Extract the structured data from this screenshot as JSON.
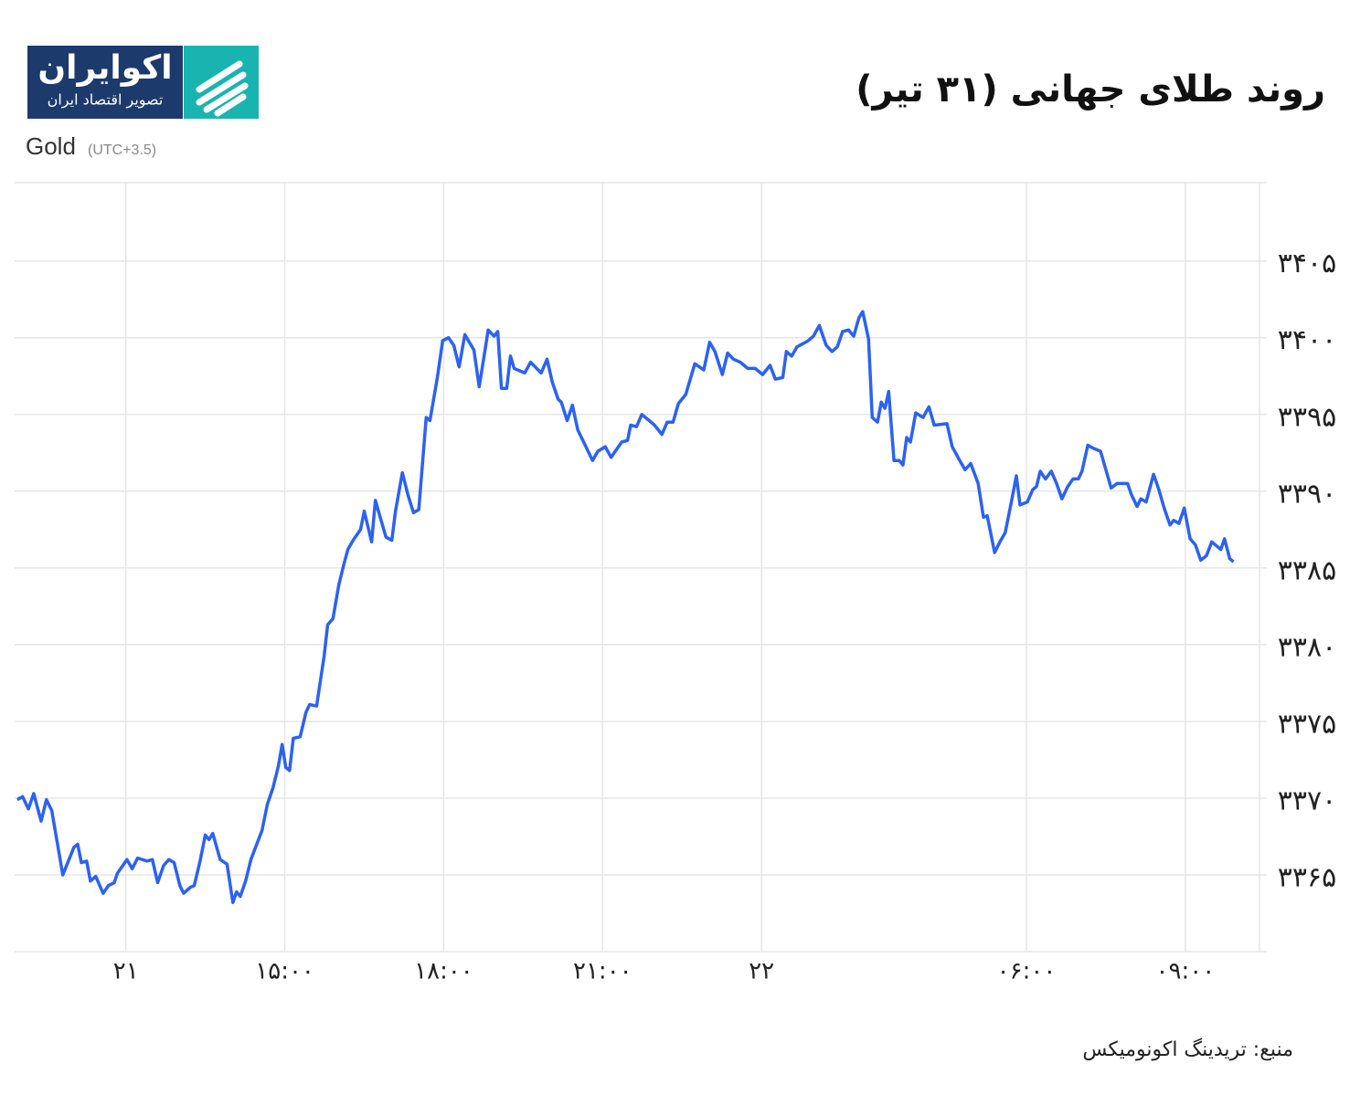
{
  "logo": {
    "name": "اکوایران",
    "tagline": "تصویر اقتصاد ایران"
  },
  "chart_data": {
    "type": "line",
    "title": "روند طلای جهانی (۳۱ تیر)",
    "label": "Gold",
    "label_note": "(UTC+3.5)",
    "source": "منبع: تریدینگ اکونومیکس",
    "xlim": [
      -2.1,
      21.4
    ],
    "xticks": [
      {
        "value": 0,
        "label": "۲۱"
      },
      {
        "value": 3,
        "label": "۱۵:۰۰"
      },
      {
        "value": 6,
        "label": "۱۸:۰۰"
      },
      {
        "value": 9,
        "label": "۲۱:۰۰"
      },
      {
        "value": 12,
        "label": "۲۲"
      },
      {
        "value": 17,
        "label": "۰۶:۰۰"
      },
      {
        "value": 20,
        "label": "۰۹:۰۰"
      }
    ],
    "ylim": [
      3360,
      3410.1
    ],
    "yticks": [
      {
        "value": 3365,
        "label": "۳۳۶۵"
      },
      {
        "value": 3370,
        "label": "۳۳۷۰"
      },
      {
        "value": 3375,
        "label": "۳۳۷۵"
      },
      {
        "value": 3380,
        "label": "۳۳۸۰"
      },
      {
        "value": 3385,
        "label": "۳۳۸۵"
      },
      {
        "value": 3390,
        "label": "۳۳۹۰"
      },
      {
        "value": 3395,
        "label": "۳۳۹۵"
      },
      {
        "value": 3400,
        "label": "۳۴۰۰"
      },
      {
        "value": 3405,
        "label": "۳۴۰۵"
      }
    ],
    "grid": true,
    "color": "#2c62f2",
    "x": [
      -2.05,
      -1.95,
      -1.84,
      -1.74,
      -1.6,
      -1.5,
      -1.4,
      -1.19,
      -0.98,
      -0.91,
      -0.84,
      -0.74,
      -0.67,
      -0.57,
      -0.43,
      -0.33,
      -0.22,
      -0.16,
      0.02,
      0.12,
      0.22,
      0.4,
      0.5,
      0.6,
      0.71,
      0.81,
      0.91,
      1.02,
      1.09,
      1.22,
      1.29,
      1.4,
      1.5,
      1.57,
      1.64,
      1.78,
      1.91,
      2.02,
      2.09,
      2.16,
      2.26,
      2.36,
      2.47,
      2.57,
      2.67,
      2.78,
      2.88,
      2.95,
      3.02,
      3.09,
      3.16,
      3.29,
      3.4,
      3.47,
      3.6,
      3.74,
      3.81,
      3.91,
      4.02,
      4.12,
      4.19,
      4.29,
      4.43,
      4.5,
      4.64,
      4.71,
      4.81,
      4.91,
      5.02,
      5.09,
      5.22,
      5.33,
      5.43,
      5.53,
      5.67,
      5.74,
      5.88,
      5.98,
      6.09,
      6.19,
      6.29,
      6.4,
      6.57,
      6.67,
      6.78,
      6.84,
      6.95,
      7.02,
      7.09,
      7.19,
      7.26,
      7.33,
      7.53,
      7.64,
      7.84,
      7.95,
      8.05,
      8.16,
      8.22,
      8.33,
      8.43,
      8.53,
      8.67,
      8.81,
      8.91,
      9.05,
      9.16,
      9.26,
      9.36,
      9.47,
      9.53,
      9.64,
      9.74,
      9.88,
      9.98,
      10.12,
      10.22,
      10.33,
      10.43,
      10.57,
      10.74,
      10.91,
      11.02,
      11.12,
      11.26,
      11.36,
      11.47,
      11.6,
      11.74,
      11.88,
      12.02,
      12.16,
      12.26,
      12.4,
      12.47,
      12.57,
      12.67,
      12.88,
      12.98,
      13.09,
      13.22,
      13.33,
      13.43,
      13.53,
      13.64,
      13.74,
      13.84,
      13.91,
      14.02,
      14.09,
      14.19,
      14.26,
      14.33,
      14.4,
      14.5,
      14.6,
      14.67,
      14.74,
      14.81,
      14.91,
      15.05,
      15.16,
      15.26,
      15.5,
      15.6,
      15.74,
      15.84,
      15.95,
      16.09,
      16.19,
      16.26,
      16.4,
      16.5,
      16.6,
      16.71,
      16.81,
      16.88,
      17.02,
      17.12,
      17.19,
      17.26,
      17.36,
      17.47,
      17.57,
      17.67,
      17.78,
      17.88,
      17.98,
      18.05,
      18.16,
      18.26,
      18.4,
      18.5,
      18.6,
      18.71,
      18.91,
      18.98,
      19.09,
      19.16,
      19.26,
      19.4,
      19.5,
      19.6,
      19.71,
      19.78,
      19.88,
      19.98,
      20.09,
      20.19,
      20.29,
      20.4,
      20.5,
      20.67,
      20.74,
      20.84,
      20.91
    ],
    "values": [
      3369.9,
      3370.1,
      3369.3,
      3370.3,
      3368.5,
      3369.9,
      3369.2,
      3365.0,
      3366.8,
      3367.0,
      3365.8,
      3365.9,
      3364.6,
      3364.9,
      3363.8,
      3364.3,
      3364.5,
      3365.1,
      3366.0,
      3365.4,
      3366.1,
      3365.9,
      3366.0,
      3364.5,
      3365.6,
      3366.0,
      3365.8,
      3364.3,
      3363.8,
      3364.2,
      3364.3,
      3365.9,
      3367.6,
      3367.3,
      3367.7,
      3366.0,
      3365.7,
      3363.2,
      3363.9,
      3363.6,
      3364.6,
      3366.0,
      3367.0,
      3367.9,
      3369.6,
      3370.7,
      3372.1,
      3373.5,
      3372.0,
      3371.8,
      3373.9,
      3374.0,
      3375.6,
      3376.1,
      3376.0,
      3379.2,
      3381.3,
      3381.7,
      3383.9,
      3385.3,
      3386.2,
      3386.8,
      3387.5,
      3388.7,
      3386.7,
      3389.4,
      3388.2,
      3387.0,
      3386.8,
      3388.7,
      3391.2,
      3389.7,
      3388.6,
      3388.8,
      3394.8,
      3394.6,
      3397.4,
      3399.8,
      3400.0,
      3399.5,
      3398.1,
      3400.2,
      3399.2,
      3396.8,
      3399.2,
      3400.5,
      3400.1,
      3400.4,
      3396.7,
      3396.7,
      3398.8,
      3398.0,
      3397.7,
      3398.4,
      3397.7,
      3398.6,
      3397.1,
      3396.0,
      3395.8,
      3394.6,
      3395.6,
      3394.0,
      3393.0,
      3392.0,
      3392.6,
      3392.9,
      3392.2,
      3392.7,
      3393.2,
      3393.3,
      3394.3,
      3394.2,
      3395.0,
      3394.6,
      3394.3,
      3393.7,
      3394.5,
      3394.5,
      3395.7,
      3396.3,
      3398.3,
      3397.9,
      3399.7,
      3399.1,
      3397.6,
      3399.0,
      3398.6,
      3398.4,
      3398.0,
      3398.0,
      3397.6,
      3398.2,
      3397.3,
      3397.4,
      3399.1,
      3398.8,
      3399.4,
      3399.8,
      3400.1,
      3400.8,
      3399.5,
      3399.1,
      3399.4,
      3400.4,
      3400.5,
      3400.1,
      3401.3,
      3401.7,
      3399.9,
      3394.8,
      3394.5,
      3395.8,
      3395.4,
      3396.5,
      3392.0,
      3392.0,
      3391.7,
      3393.5,
      3393.2,
      3395.1,
      3394.8,
      3395.5,
      3394.3,
      3394.4,
      3392.9,
      3392.0,
      3391.4,
      3391.8,
      3390.5,
      3388.3,
      3388.4,
      3386.0,
      3386.7,
      3387.3,
      3389.2,
      3391.0,
      3389.1,
      3389.3,
      3390.1,
      3390.3,
      3391.3,
      3390.8,
      3391.3,
      3390.5,
      3389.5,
      3390.3,
      3390.8,
      3390.8,
      3391.3,
      3393.0,
      3392.8,
      3392.6,
      3391.4,
      3390.2,
      3390.5,
      3390.5,
      3389.8,
      3389.0,
      3389.5,
      3389.3,
      3391.1,
      3390.1,
      3388.9,
      3387.8,
      3388.1,
      3387.9,
      3388.9,
      3386.9,
      3386.5,
      3385.5,
      3385.8,
      3386.7,
      3386.2,
      3386.9,
      3385.6,
      3385.4
    ]
  }
}
